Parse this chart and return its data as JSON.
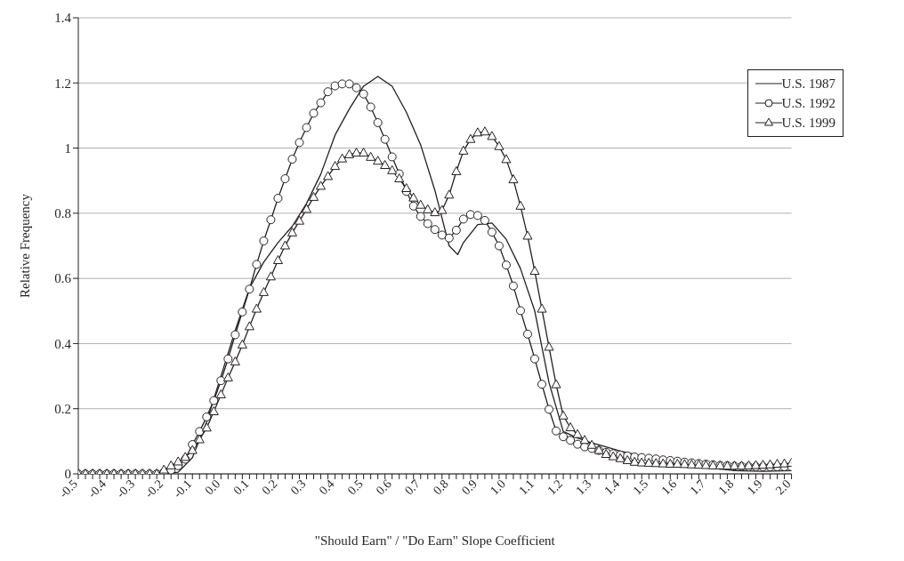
{
  "chart_data": {
    "type": "line",
    "xlabel": "\"Should Earn\" / \"Do Earn\" Slope Coefficient",
    "ylabel": "Relative Frequency",
    "xlim": [
      -0.5,
      2.0
    ],
    "ylim": [
      0,
      1.4
    ],
    "yticks": [
      0,
      0.2,
      0.4,
      0.6,
      0.8,
      1,
      1.2,
      1.4
    ],
    "xticks": [
      {
        "value": -0.5,
        "label": "-0.5"
      },
      {
        "value": -0.475,
        "label": null
      },
      {
        "value": -0.45,
        "label": null
      },
      {
        "value": -0.425,
        "label": null
      },
      {
        "value": -0.4,
        "label": "-0.4"
      },
      {
        "value": -0.375,
        "label": null
      },
      {
        "value": -0.35,
        "label": null
      },
      {
        "value": -0.325,
        "label": null
      },
      {
        "value": -0.3,
        "label": "-0.3"
      },
      {
        "value": -0.275,
        "label": null
      },
      {
        "value": -0.25,
        "label": null
      },
      {
        "value": -0.225,
        "label": null
      },
      {
        "value": -0.2,
        "label": "-0.2"
      },
      {
        "value": -0.175,
        "label": null
      },
      {
        "value": -0.15,
        "label": null
      },
      {
        "value": -0.125,
        "label": null
      },
      {
        "value": -0.1,
        "label": "-0.1"
      },
      {
        "value": -0.075,
        "label": null
      },
      {
        "value": -0.05,
        "label": null
      },
      {
        "value": -0.025,
        "label": null
      },
      {
        "value": 0,
        "label": "0.0"
      },
      {
        "value": 0.025,
        "label": null
      },
      {
        "value": 0.05,
        "label": null
      },
      {
        "value": 0.075,
        "label": null
      },
      {
        "value": 0.1,
        "label": "0.1"
      },
      {
        "value": 0.125,
        "label": null
      },
      {
        "value": 0.15,
        "label": null
      },
      {
        "value": 0.175,
        "label": null
      },
      {
        "value": 0.2,
        "label": "0.2"
      },
      {
        "value": 0.225,
        "label": null
      },
      {
        "value": 0.25,
        "label": null
      },
      {
        "value": 0.275,
        "label": null
      },
      {
        "value": 0.3,
        "label": "0.3"
      },
      {
        "value": 0.325,
        "label": null
      },
      {
        "value": 0.35,
        "label": null
      },
      {
        "value": 0.375,
        "label": null
      },
      {
        "value": 0.4,
        "label": "0.4"
      },
      {
        "value": 0.425,
        "label": null
      },
      {
        "value": 0.45,
        "label": null
      },
      {
        "value": 0.475,
        "label": null
      },
      {
        "value": 0.5,
        "label": "0.5"
      },
      {
        "value": 0.525,
        "label": null
      },
      {
        "value": 0.55,
        "label": null
      },
      {
        "value": 0.575,
        "label": null
      },
      {
        "value": 0.6,
        "label": "0.6"
      },
      {
        "value": 0.625,
        "label": null
      },
      {
        "value": 0.65,
        "label": null
      },
      {
        "value": 0.675,
        "label": null
      },
      {
        "value": 0.7,
        "label": "0.7"
      },
      {
        "value": 0.725,
        "label": null
      },
      {
        "value": 0.75,
        "label": null
      },
      {
        "value": 0.775,
        "label": null
      },
      {
        "value": 0.8,
        "label": "0.8"
      },
      {
        "value": 0.825,
        "label": null
      },
      {
        "value": 0.85,
        "label": null
      },
      {
        "value": 0.875,
        "label": null
      },
      {
        "value": 0.9,
        "label": "0.9"
      },
      {
        "value": 0.925,
        "label": null
      },
      {
        "value": 0.95,
        "label": null
      },
      {
        "value": 0.975,
        "label": null
      },
      {
        "value": 1.0,
        "label": "1.0"
      },
      {
        "value": 1.025,
        "label": null
      },
      {
        "value": 1.05,
        "label": null
      },
      {
        "value": 1.075,
        "label": null
      },
      {
        "value": 1.1,
        "label": "1.1"
      },
      {
        "value": 1.125,
        "label": null
      },
      {
        "value": 1.15,
        "label": null
      },
      {
        "value": 1.175,
        "label": null
      },
      {
        "value": 1.2,
        "label": "1.2"
      },
      {
        "value": 1.225,
        "label": null
      },
      {
        "value": 1.25,
        "label": null
      },
      {
        "value": 1.275,
        "label": null
      },
      {
        "value": 1.3,
        "label": "1.3"
      },
      {
        "value": 1.325,
        "label": null
      },
      {
        "value": 1.35,
        "label": null
      },
      {
        "value": 1.375,
        "label": null
      },
      {
        "value": 1.4,
        "label": "1.4"
      },
      {
        "value": 1.425,
        "label": null
      },
      {
        "value": 1.45,
        "label": null
      },
      {
        "value": 1.475,
        "label": null
      },
      {
        "value": 1.5,
        "label": "1.5"
      },
      {
        "value": 1.525,
        "label": null
      },
      {
        "value": 1.55,
        "label": null
      },
      {
        "value": 1.575,
        "label": null
      },
      {
        "value": 1.6,
        "label": "1.6"
      },
      {
        "value": 1.625,
        "label": null
      },
      {
        "value": 1.65,
        "label": null
      },
      {
        "value": 1.675,
        "label": null
      },
      {
        "value": 1.7,
        "label": "1.7"
      },
      {
        "value": 1.725,
        "label": null
      },
      {
        "value": 1.75,
        "label": null
      },
      {
        "value": 1.775,
        "label": null
      },
      {
        "value": 1.8,
        "label": "1.8"
      },
      {
        "value": 1.825,
        "label": null
      },
      {
        "value": 1.85,
        "label": null
      },
      {
        "value": 1.875,
        "label": null
      },
      {
        "value": 1.9,
        "label": "1.9"
      },
      {
        "value": 1.925,
        "label": null
      },
      {
        "value": 1.95,
        "label": null
      },
      {
        "value": 1.975,
        "label": null
      },
      {
        "value": 2.0,
        "label": "2.0"
      }
    ],
    "grid": "y",
    "legend": "top right",
    "series": [
      {
        "name": "U.S. 1987",
        "color": "#231f20",
        "marker": "none",
        "x": [
          -0.5,
          -0.4,
          -0.3,
          -0.2,
          -0.15,
          -0.1,
          -0.05,
          0,
          0.05,
          0.1,
          0.15,
          0.2,
          0.25,
          0.3,
          0.35,
          0.4,
          0.45,
          0.5,
          0.55,
          0.6,
          0.65,
          0.7,
          0.75,
          0.8,
          0.83,
          0.85,
          0.9,
          0.95,
          1.0,
          1.05,
          1.1,
          1.15,
          1.2,
          1.25,
          1.3,
          1.35,
          1.4,
          1.5,
          1.6,
          1.7,
          1.8,
          1.9,
          2.0
        ],
        "values": [
          0,
          0,
          0,
          0,
          0.005,
          0.05,
          0.16,
          0.3,
          0.44,
          0.57,
          0.65,
          0.71,
          0.76,
          0.83,
          0.92,
          1.04,
          1.12,
          1.19,
          1.22,
          1.19,
          1.11,
          1.01,
          0.87,
          0.7,
          0.673,
          0.71,
          0.765,
          0.77,
          0.72,
          0.63,
          0.5,
          0.28,
          0.13,
          0.11,
          0.095,
          0.083,
          0.07,
          0.05,
          0.035,
          0.02,
          0.01,
          0.008,
          0.01
        ]
      },
      {
        "name": "U.S. 1992",
        "color": "#231f20",
        "marker": "circle",
        "x": [
          -0.5,
          -0.475,
          -0.45,
          -0.425,
          -0.4,
          -0.375,
          -0.35,
          -0.325,
          -0.3,
          -0.275,
          -0.25,
          -0.225,
          -0.2,
          -0.175,
          -0.15,
          -0.125,
          -0.1,
          -0.075,
          -0.05,
          -0.025,
          0,
          0.025,
          0.05,
          0.075,
          0.1,
          0.125,
          0.15,
          0.175,
          0.2,
          0.225,
          0.25,
          0.275,
          0.3,
          0.325,
          0.35,
          0.375,
          0.4,
          0.425,
          0.45,
          0.475,
          0.5,
          0.525,
          0.55,
          0.575,
          0.6,
          0.625,
          0.65,
          0.675,
          0.7,
          0.725,
          0.75,
          0.775,
          0.8,
          0.825,
          0.85,
          0.875,
          0.9,
          0.925,
          0.95,
          0.975,
          1.0,
          1.025,
          1.05,
          1.075,
          1.1,
          1.125,
          1.15,
          1.175,
          1.2,
          1.225,
          1.25,
          1.275,
          1.3,
          1.325,
          1.35,
          1.375,
          1.4,
          1.425,
          1.45,
          1.475,
          1.5,
          1.525,
          1.55,
          1.575,
          1.6,
          1.625,
          1.65,
          1.675,
          1.7,
          1.725,
          1.75,
          1.775,
          1.8,
          1.825,
          1.85,
          1.875,
          1.9,
          1.925,
          1.95,
          1.975,
          2.0
        ],
        "values": [
          0,
          0,
          0,
          0,
          0,
          0,
          0,
          0,
          0,
          0,
          0,
          0,
          0.005,
          0.012,
          0.025,
          0.045,
          0.09,
          0.13,
          0.175,
          0.225,
          0.286,
          0.353,
          0.427,
          0.497,
          0.567,
          0.643,
          0.715,
          0.78,
          0.846,
          0.906,
          0.966,
          1.017,
          1.063,
          1.107,
          1.139,
          1.173,
          1.191,
          1.197,
          1.197,
          1.185,
          1.166,
          1.126,
          1.078,
          1.027,
          0.973,
          0.921,
          0.867,
          0.822,
          0.79,
          0.768,
          0.75,
          0.733,
          0.724,
          0.748,
          0.782,
          0.796,
          0.793,
          0.778,
          0.742,
          0.7,
          0.641,
          0.577,
          0.501,
          0.429,
          0.353,
          0.275,
          0.198,
          0.132,
          0.114,
          0.103,
          0.091,
          0.083,
          0.078,
          0.072,
          0.066,
          0.062,
          0.058,
          0.055,
          0.052,
          0.05,
          0.048,
          0.046,
          0.043,
          0.041,
          0.039,
          0.036,
          0.034,
          0.032,
          0.03,
          0.028,
          0.026,
          0.025,
          0.024,
          0.023,
          0.022,
          0.022,
          0.022,
          0.022,
          0.022,
          0.022,
          0.022
        ]
      },
      {
        "name": "U.S. 1999",
        "color": "#231f20",
        "marker": "triangle",
        "x": [
          -0.5,
          -0.475,
          -0.45,
          -0.425,
          -0.4,
          -0.375,
          -0.35,
          -0.325,
          -0.3,
          -0.275,
          -0.25,
          -0.225,
          -0.2,
          -0.175,
          -0.15,
          -0.125,
          -0.1,
          -0.075,
          -0.05,
          -0.025,
          0,
          0.025,
          0.05,
          0.075,
          0.1,
          0.125,
          0.15,
          0.175,
          0.2,
          0.225,
          0.25,
          0.275,
          0.3,
          0.325,
          0.35,
          0.375,
          0.4,
          0.425,
          0.45,
          0.475,
          0.5,
          0.525,
          0.55,
          0.575,
          0.6,
          0.625,
          0.65,
          0.675,
          0.7,
          0.725,
          0.75,
          0.775,
          0.8,
          0.825,
          0.85,
          0.875,
          0.9,
          0.925,
          0.95,
          0.975,
          1.0,
          1.025,
          1.05,
          1.075,
          1.1,
          1.125,
          1.15,
          1.175,
          1.2,
          1.225,
          1.25,
          1.275,
          1.3,
          1.325,
          1.35,
          1.375,
          1.4,
          1.425,
          1.45,
          1.475,
          1.5,
          1.525,
          1.55,
          1.575,
          1.6,
          1.625,
          1.65,
          1.675,
          1.7,
          1.725,
          1.75,
          1.775,
          1.8,
          1.825,
          1.85,
          1.875,
          1.9,
          1.925,
          1.95,
          1.975,
          2.0
        ],
        "values": [
          0,
          0,
          0,
          0,
          0,
          0,
          0,
          0,
          0,
          0,
          0,
          0,
          0.012,
          0.025,
          0.037,
          0.051,
          0.072,
          0.105,
          0.141,
          0.191,
          0.243,
          0.295,
          0.344,
          0.396,
          0.452,
          0.506,
          0.557,
          0.605,
          0.655,
          0.7,
          0.74,
          0.776,
          0.812,
          0.849,
          0.883,
          0.913,
          0.944,
          0.967,
          0.98,
          0.985,
          0.985,
          0.972,
          0.96,
          0.947,
          0.931,
          0.906,
          0.876,
          0.847,
          0.825,
          0.811,
          0.802,
          0.809,
          0.856,
          0.928,
          0.991,
          1.027,
          1.047,
          1.05,
          1.036,
          1.005,
          0.965,
          0.903,
          0.822,
          0.73,
          0.622,
          0.506,
          0.389,
          0.274,
          0.178,
          0.142,
          0.121,
          0.103,
          0.088,
          0.072,
          0.06,
          0.053,
          0.047,
          0.041,
          0.036,
          0.034,
          0.033,
          0.032,
          0.031,
          0.03,
          0.03,
          0.029,
          0.028,
          0.027,
          0.026,
          0.025,
          0.025,
          0.024,
          0.024,
          0.024,
          0.025,
          0.026,
          0.027,
          0.028,
          0.03,
          0.031,
          0.033
        ]
      }
    ]
  }
}
